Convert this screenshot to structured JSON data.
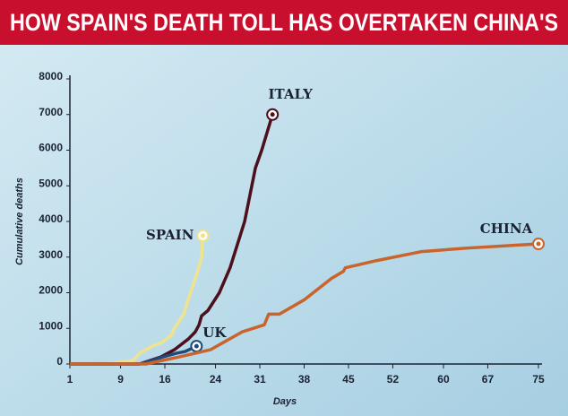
{
  "chart_data": {
    "type": "line",
    "title": "HOW SPAIN'S DEATH TOLL HAS OVERTAKEN CHINA'S",
    "x_label": "Days",
    "y_label": "Cumulative deaths",
    "xlim": [
      1,
      75
    ],
    "xticks": [
      1,
      9,
      16,
      24,
      31,
      38,
      45,
      52,
      60,
      67,
      75
    ],
    "ylim": [
      0,
      8000
    ],
    "yticks": [
      0,
      1000,
      2000,
      3000,
      4000,
      5000,
      6000,
      7000,
      8000
    ],
    "series": [
      {
        "name": "SPAIN",
        "color": "#efe38e",
        "x": [
          1,
          6,
          9,
          11,
          12,
          14,
          15.5,
          17,
          17.5,
          19,
          19.5,
          21,
          21.5,
          21.8,
          22
        ],
        "values": [
          0,
          0,
          50,
          100,
          300,
          500,
          600,
          800,
          1000,
          1400,
          1700,
          2500,
          2800,
          3000,
          3600
        ]
      },
      {
        "name": "ITALY",
        "color": "#4e0f1c",
        "x": [
          1,
          12,
          15.4,
          17.5,
          19.7,
          20.8,
          21.4,
          21.8,
          22.8,
          24.6,
          26.3,
          28.6,
          30.3,
          31.3,
          33
        ],
        "values": [
          0,
          0,
          200,
          400,
          700,
          900,
          1100,
          1350,
          1500,
          2000,
          2700,
          4000,
          5500,
          6000,
          7000
        ]
      },
      {
        "name": "UK",
        "color": "#1f4a7a",
        "x": [
          1,
          12,
          14,
          15.7,
          17.8,
          19.2,
          21
        ],
        "values": [
          0,
          0,
          100,
          200,
          300,
          350,
          500
        ]
      },
      {
        "name": "CHINA",
        "color": "#c9642c",
        "x": [
          1,
          13,
          18.3,
          23.2,
          28.2,
          31.7,
          32.4,
          34.1,
          38,
          42.3,
          44.2,
          44.5,
          49.4,
          56.4,
          63.5,
          75
        ],
        "values": [
          0,
          0,
          200,
          400,
          900,
          1100,
          1400,
          1400,
          1800,
          2400,
          2600,
          2700,
          2900,
          3150,
          3250,
          3370
        ]
      }
    ]
  }
}
